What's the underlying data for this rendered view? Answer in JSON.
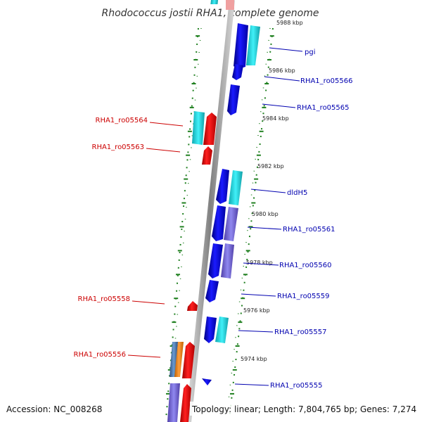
{
  "title": "Rhodococcus jostii RHA1, complete genome",
  "accession": "Accession: NC_008268",
  "topology": "Topology: linear; Length: 7,804,765 bp; Genes: 7,274",
  "kbp_labels": [
    "5988 kbp",
    "5986 kbp",
    "5984 kbp",
    "5982 kbp",
    "5980 kbp",
    "5978 kbp",
    "5976 kbp",
    "5974 kbp"
  ],
  "right_labels": [
    "pgi",
    "RHA1_ro05566",
    "RHA1_ro05565",
    "dldH5",
    "RHA1_ro05561",
    "RHA1_ro05560",
    "RHA1_ro05559",
    "RHA1_ro05557",
    "RHA1_ro05555"
  ],
  "left_labels": [
    "RHA1_ro05564",
    "RHA1_ro05563",
    "RHA1_ro05558",
    "RHA1_ro05556"
  ],
  "colors": {
    "reverse_strand": "#1010ee",
    "forward_strand": "#ee1010",
    "cyan": "#20d0d8",
    "purple": "#7a70d8",
    "steel": "#5078b0",
    "orange": "#f08a20",
    "right_label": "#0000b0",
    "left_label": "#cc0000",
    "tick": "#208020"
  }
}
